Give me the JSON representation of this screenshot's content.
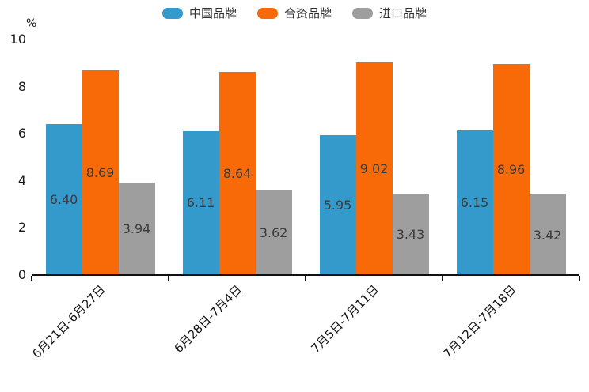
{
  "chart_data": {
    "type": "bar",
    "title": "",
    "xlabel": "",
    "ylabel": "%",
    "ylim": [
      0,
      10
    ],
    "yticks": [
      0,
      2,
      4,
      6,
      8,
      10
    ],
    "grid": false,
    "legend_position": "top-center",
    "categories": [
      "6月21日-6月27日",
      "6月28日-7月4日",
      "7月5日-7月11日",
      "7月12日-7月18日"
    ],
    "series": [
      {
        "name": "中国品牌",
        "color": "#3499CB",
        "values": [
          6.4,
          6.11,
          5.95,
          6.15
        ],
        "labels": [
          "6.40",
          "6.11",
          "5.95",
          "6.15"
        ]
      },
      {
        "name": "合资品牌",
        "color": "#F86A08",
        "values": [
          8.69,
          8.64,
          9.02,
          8.96
        ],
        "labels": [
          "8.69",
          "8.64",
          "9.02",
          "8.96"
        ]
      },
      {
        "name": "进口品牌",
        "color": "#9E9E9E",
        "values": [
          3.94,
          3.62,
          3.43,
          3.42
        ],
        "labels": [
          "3.94",
          "3.62",
          "3.43",
          "3.42"
        ]
      }
    ],
    "value_label_color": "#3B3B3B",
    "axis_color": "#111111"
  }
}
